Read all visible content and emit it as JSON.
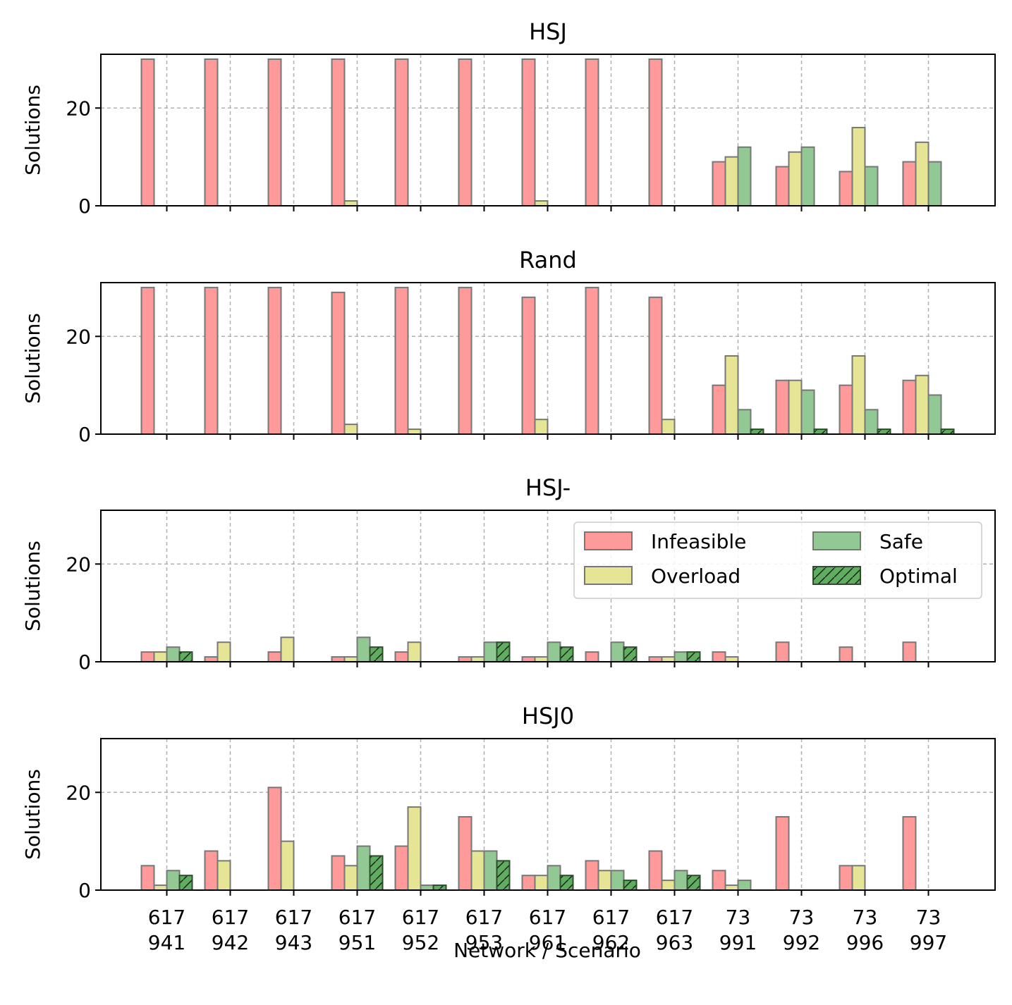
{
  "figure": {
    "xlabel": "Network / Scenario",
    "ylabel": "Solutions"
  },
  "legend": {
    "items": [
      {
        "key": "infeasible",
        "label": "Infeasible"
      },
      {
        "key": "safe",
        "label": "Safe"
      },
      {
        "key": "overload",
        "label": "Overload"
      },
      {
        "key": "optimal",
        "label": "Optimal"
      }
    ],
    "placement": "upper-right of HSJ- panel"
  },
  "colors": {
    "infeasible": "#ff9a9a",
    "overload": "#e6e596",
    "safe": "#91c894",
    "optimal": "#5fae5f",
    "edge": "#777777",
    "grid": "#b0b0b0"
  },
  "chart_data": [
    {
      "type": "bar",
      "title": "HSJ",
      "xlabel": "",
      "ylabel": "Solutions",
      "ylim": [
        0,
        31
      ],
      "yticks": [
        0,
        20
      ],
      "grid": true,
      "categories": [
        [
          "617",
          "941"
        ],
        [
          "617",
          "942"
        ],
        [
          "617",
          "943"
        ],
        [
          "617",
          "951"
        ],
        [
          "617",
          "952"
        ],
        [
          "617",
          "953"
        ],
        [
          "617",
          "961"
        ],
        [
          "617",
          "962"
        ],
        [
          "617",
          "963"
        ],
        [
          "73",
          "991"
        ],
        [
          "73",
          "992"
        ],
        [
          "73",
          "996"
        ],
        [
          "73",
          "997"
        ]
      ],
      "series": [
        {
          "name": "Infeasible",
          "values": [
            30,
            30,
            30,
            30,
            30,
            30,
            30,
            30,
            30,
            9,
            8,
            7,
            9
          ]
        },
        {
          "name": "Overload",
          "values": [
            0,
            0,
            0,
            1,
            0,
            0,
            1,
            0,
            0,
            10,
            11,
            16,
            13
          ]
        },
        {
          "name": "Safe",
          "values": [
            0,
            0,
            0,
            0,
            0,
            0,
            0,
            0,
            0,
            12,
            12,
            8,
            9
          ]
        },
        {
          "name": "Optimal",
          "values": [
            0,
            0,
            0,
            0,
            0,
            0,
            0,
            0,
            0,
            0,
            0,
            0,
            0
          ]
        }
      ]
    },
    {
      "type": "bar",
      "title": "Rand",
      "xlabel": "",
      "ylabel": "Solutions",
      "ylim": [
        0,
        31
      ],
      "yticks": [
        0,
        20
      ],
      "grid": true,
      "categories": [
        [
          "617",
          "941"
        ],
        [
          "617",
          "942"
        ],
        [
          "617",
          "943"
        ],
        [
          "617",
          "951"
        ],
        [
          "617",
          "952"
        ],
        [
          "617",
          "953"
        ],
        [
          "617",
          "961"
        ],
        [
          "617",
          "962"
        ],
        [
          "617",
          "963"
        ],
        [
          "73",
          "991"
        ],
        [
          "73",
          "992"
        ],
        [
          "73",
          "996"
        ],
        [
          "73",
          "997"
        ]
      ],
      "series": [
        {
          "name": "Infeasible",
          "values": [
            30,
            30,
            30,
            29,
            30,
            30,
            28,
            30,
            28,
            10,
            11,
            10,
            11
          ]
        },
        {
          "name": "Overload",
          "values": [
            0,
            0,
            0,
            2,
            1,
            0,
            3,
            0,
            3,
            16,
            11,
            16,
            12
          ]
        },
        {
          "name": "Safe",
          "values": [
            0,
            0,
            0,
            0,
            0,
            0,
            0,
            0,
            0,
            5,
            9,
            5,
            8
          ]
        },
        {
          "name": "Optimal",
          "values": [
            0,
            0,
            0,
            0,
            0,
            0,
            0,
            0,
            0,
            1,
            1,
            1,
            1
          ]
        }
      ]
    },
    {
      "type": "bar",
      "title": "HSJ-",
      "xlabel": "",
      "ylabel": "Solutions",
      "ylim": [
        0,
        31
      ],
      "yticks": [
        0,
        20
      ],
      "grid": true,
      "legend": true,
      "categories": [
        [
          "617",
          "941"
        ],
        [
          "617",
          "942"
        ],
        [
          "617",
          "943"
        ],
        [
          "617",
          "951"
        ],
        [
          "617",
          "952"
        ],
        [
          "617",
          "953"
        ],
        [
          "617",
          "961"
        ],
        [
          "617",
          "962"
        ],
        [
          "617",
          "963"
        ],
        [
          "73",
          "991"
        ],
        [
          "73",
          "992"
        ],
        [
          "73",
          "996"
        ],
        [
          "73",
          "997"
        ]
      ],
      "series": [
        {
          "name": "Infeasible",
          "values": [
            2,
            1,
            2,
            1,
            2,
            1,
            1,
            2,
            1,
            2,
            4,
            3,
            4
          ]
        },
        {
          "name": "Overload",
          "values": [
            2,
            4,
            5,
            1,
            4,
            1,
            1,
            0,
            1,
            1,
            0,
            0,
            0
          ]
        },
        {
          "name": "Safe",
          "values": [
            3,
            0,
            0,
            5,
            0,
            4,
            4,
            4,
            2,
            0,
            0,
            0,
            0
          ]
        },
        {
          "name": "Optimal",
          "values": [
            2,
            0,
            0,
            3,
            0,
            4,
            3,
            3,
            2,
            0,
            0,
            0,
            0
          ]
        }
      ]
    },
    {
      "type": "bar",
      "title": "HSJ0",
      "xlabel": "Network / Scenario",
      "ylabel": "Solutions",
      "ylim": [
        0,
        31
      ],
      "yticks": [
        0,
        20
      ],
      "grid": true,
      "categories": [
        [
          "617",
          "941"
        ],
        [
          "617",
          "942"
        ],
        [
          "617",
          "943"
        ],
        [
          "617",
          "951"
        ],
        [
          "617",
          "952"
        ],
        [
          "617",
          "953"
        ],
        [
          "617",
          "961"
        ],
        [
          "617",
          "962"
        ],
        [
          "617",
          "963"
        ],
        [
          "73",
          "991"
        ],
        [
          "73",
          "992"
        ],
        [
          "73",
          "996"
        ],
        [
          "73",
          "997"
        ]
      ],
      "series": [
        {
          "name": "Infeasible",
          "values": [
            5,
            8,
            21,
            7,
            9,
            15,
            3,
            6,
            8,
            4,
            15,
            5,
            15
          ]
        },
        {
          "name": "Overload",
          "values": [
            1,
            6,
            10,
            5,
            17,
            8,
            3,
            4,
            2,
            1,
            0,
            5,
            0
          ]
        },
        {
          "name": "Safe",
          "values": [
            4,
            0,
            0,
            9,
            1,
            8,
            5,
            4,
            4,
            2,
            0,
            0,
            0
          ]
        },
        {
          "name": "Optimal",
          "values": [
            3,
            0,
            0,
            7,
            1,
            6,
            3,
            2,
            3,
            0,
            0,
            0,
            0
          ]
        }
      ]
    }
  ]
}
